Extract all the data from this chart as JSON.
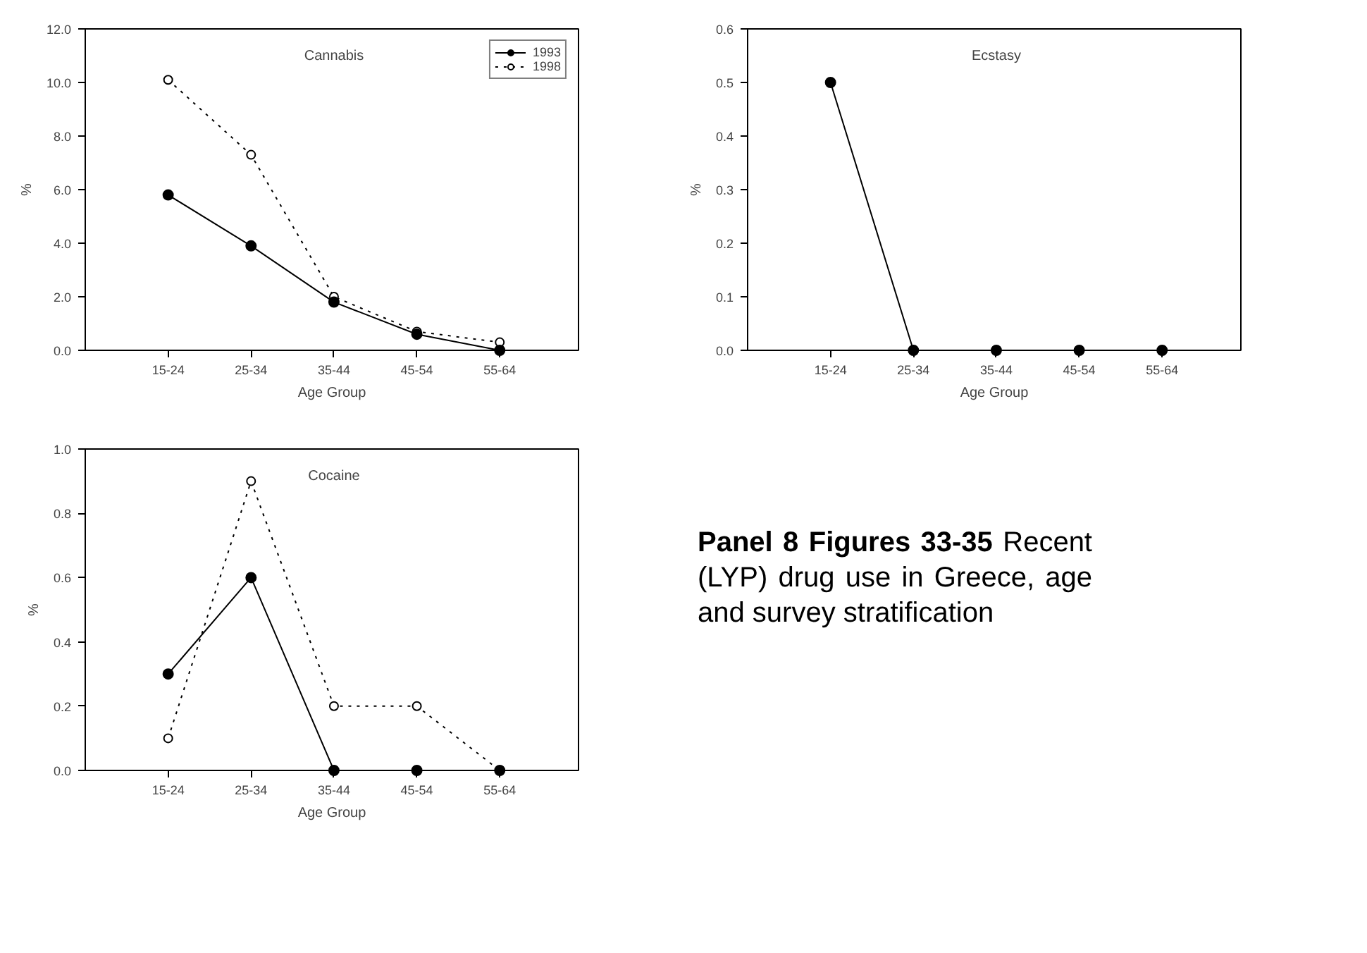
{
  "chart_data": [
    {
      "type": "line",
      "title": "Cannabis",
      "xlabel": "Age Group",
      "ylabel": "%",
      "categories": [
        "15-24",
        "25-34",
        "35-44",
        "45-54",
        "55-64"
      ],
      "series": [
        {
          "name": "1993",
          "color": "#000000",
          "line_style": "solid",
          "values": [
            5.8,
            3.9,
            1.8,
            0.6,
            0.0
          ]
        },
        {
          "name": "1998",
          "color": "#000000",
          "line_style": "dotted",
          "values": [
            10.1,
            7.3,
            2.0,
            0.7,
            0.3
          ]
        }
      ],
      "ylim": [
        0,
        12
      ],
      "yticks": [
        {
          "value": 0,
          "label": "0.0"
        },
        {
          "value": 2,
          "label": "2.0"
        },
        {
          "value": 4,
          "label": "4.0"
        },
        {
          "value": 6,
          "label": "6.0"
        },
        {
          "value": 8,
          "label": "8.0"
        },
        {
          "value": 10,
          "label": "10.0"
        },
        {
          "value": 12,
          "label": "12.0"
        }
      ],
      "grid": false,
      "marker": "circle",
      "legend": "top right"
    },
    {
      "type": "line",
      "title": "Ecstasy",
      "xlabel": "Age Group",
      "ylabel": "%",
      "categories": [
        "15-24",
        "25-34",
        "35-44",
        "45-54",
        "55-64"
      ],
      "series": [
        {
          "color": "#000000",
          "line_style": "solid",
          "values": [
            0.5,
            0.0,
            0.0,
            0.0,
            0.0
          ]
        }
      ],
      "ylim": [
        0,
        0.6
      ],
      "yticks": [
        {
          "value": 0,
          "label": "0.0"
        },
        0.1,
        0.2,
        0.3,
        0.4,
        0.5,
        0.6
      ],
      "grid": false,
      "marker": "circle"
    },
    {
      "type": "line",
      "title": "Cocaine",
      "xlabel": "Age Group",
      "ylabel": "%",
      "categories": [
        "15-24",
        "25-34",
        "35-44",
        "45-54",
        "55-64"
      ],
      "series": [
        {
          "color": "#000000",
          "line_style": "solid",
          "values": [
            0.3,
            0.6,
            0.0,
            0.0,
            0.0
          ]
        },
        {
          "color": "#000000",
          "line_style": "dotted",
          "values": [
            0.1,
            0.9,
            0.2,
            0.2,
            0.0
          ]
        }
      ],
      "ylim": [
        0,
        1
      ],
      "yticks": [
        {
          "value": 0,
          "label": "0.0"
        },
        0.2,
        0.4,
        0.6,
        0.8,
        {
          "value": 1,
          "label": "1.0"
        }
      ],
      "grid": false,
      "marker": "circle"
    },
    {
      "type": "other",
      "title": "Panel 8 Figures 33-35",
      "annotations": [
        "Recent (LYP) drug use in Greece, age and survey stratification"
      ]
    }
  ]
}
